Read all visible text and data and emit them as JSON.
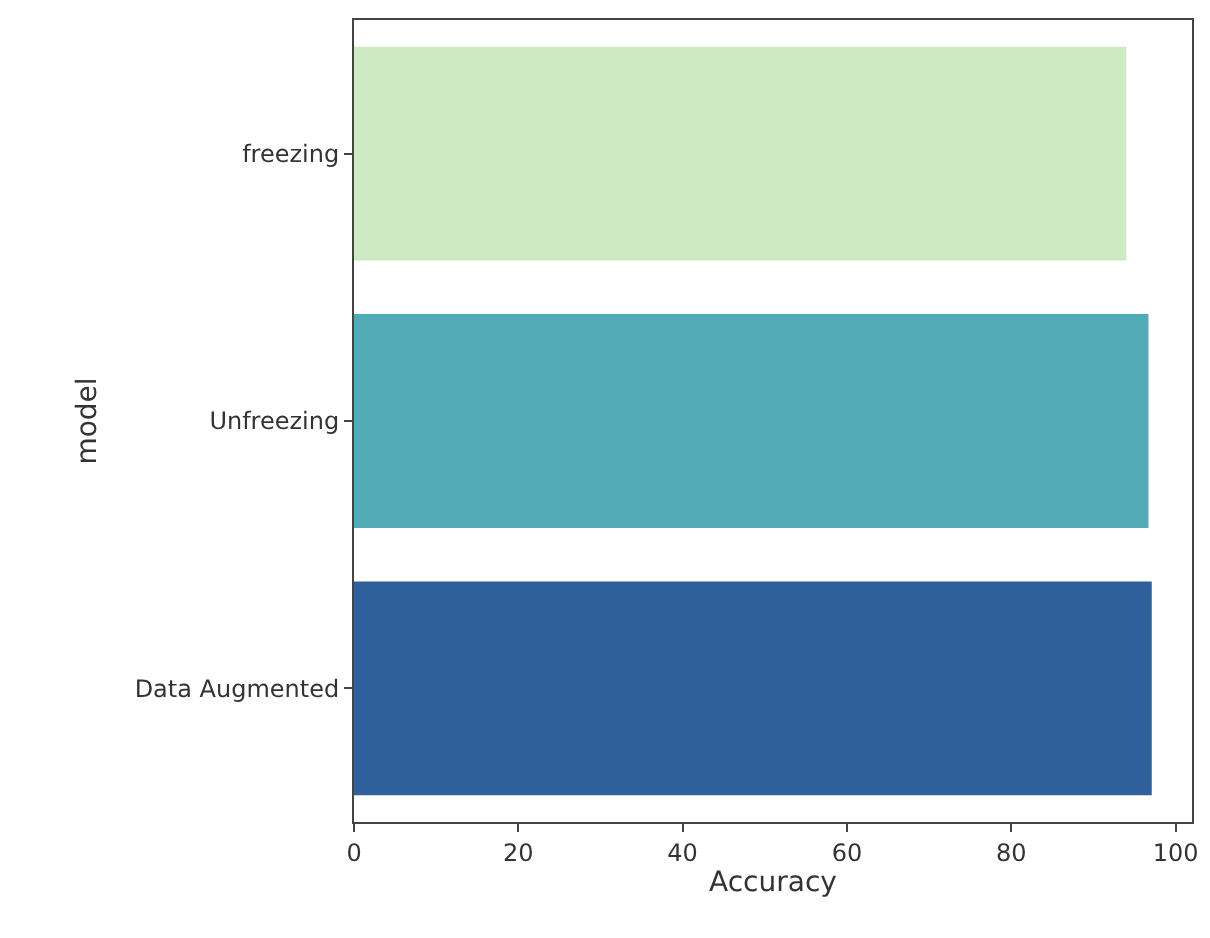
{
  "chart_data": {
    "type": "bar",
    "orientation": "horizontal",
    "xlabel": "Accuracy",
    "ylabel": "model",
    "categories": [
      "freezing",
      "Unfreezing",
      "Data Augmented"
    ],
    "values": [
      94.0,
      96.7,
      97.1
    ],
    "colors": [
      "#cdeac3",
      "#52acb8",
      "#2f609c"
    ],
    "xlim": [
      0,
      102
    ],
    "xticks": [
      0,
      20,
      40,
      60,
      80,
      100
    ]
  }
}
